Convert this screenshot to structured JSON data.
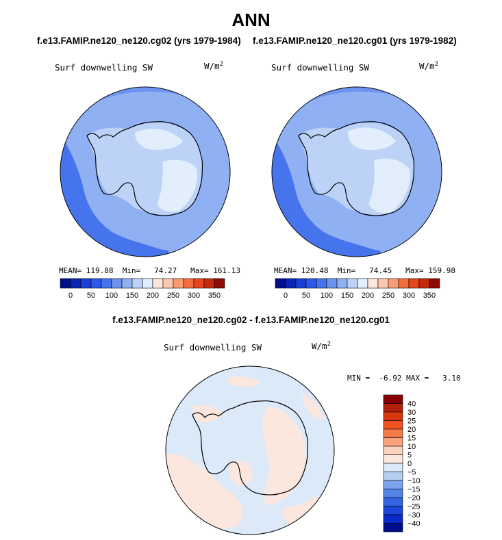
{
  "title": "ANN",
  "panels": [
    {
      "case_label": "f.e13.FAMIP.ne120_ne120.cg02 (yrs 1979-1984)",
      "variable": "Surf downwelling SW",
      "units_base": "W/m",
      "units_exp": "2",
      "stats": {
        "mean_label": "MEAN=",
        "mean": "119.88",
        "min_label": "Min=",
        "min": "74.27",
        "max_label": "Max=",
        "max": "161.13"
      }
    },
    {
      "case_label": "f.e13.FAMIP.ne120_ne120.cg01 (yrs 1979-1982)",
      "variable": "Surf downwelling SW",
      "units_base": "W/m",
      "units_exp": "2",
      "stats": {
        "mean_label": "MEAN=",
        "mean": "120.48",
        "min_label": "Min=",
        "min": "74.45",
        "max_label": "Max=",
        "max": "159.98"
      }
    }
  ],
  "main_colorbar": {
    "colors": [
      "#000f8c",
      "#0a24b4",
      "#1a3fd6",
      "#2b59e8",
      "#4674ec",
      "#6b93ef",
      "#8fb0f3",
      "#bdd2f7",
      "#e2eefb",
      "#fde7db",
      "#fbc8ae",
      "#f79c74",
      "#f36d3f",
      "#e8451b",
      "#c22a0a",
      "#8e0a04"
    ],
    "ticks": [
      "0",
      "50",
      "100",
      "150",
      "200",
      "250",
      "300",
      "350"
    ]
  },
  "difference": {
    "title": "f.e13.FAMIP.ne120_ne120.cg02 - f.e13.FAMIP.ne120_ne120.cg01",
    "variable": "Surf downwelling SW",
    "units_base": "W/m",
    "units_exp": "2",
    "min_label": "MIN =",
    "min": "-6.92",
    "max_label": "MAX =",
    "max": "3.10"
  },
  "diff_colorbar": {
    "colors": [
      "#870000",
      "#b3200c",
      "#d9380f",
      "#f0531f",
      "#f57a4a",
      "#f7a37e",
      "#fad3bf",
      "#fbe7dd",
      "#dce9f8",
      "#b8cff4",
      "#7ea3ee",
      "#5584e9",
      "#3564e2",
      "#1d45d9",
      "#0c2acc",
      "#000e8c"
    ],
    "ticks": [
      "40",
      "30",
      "25",
      "20",
      "15",
      "10",
      "5",
      "0",
      "−5",
      "−10",
      "−15",
      "−20",
      "−25",
      "−30",
      "−40"
    ]
  }
}
